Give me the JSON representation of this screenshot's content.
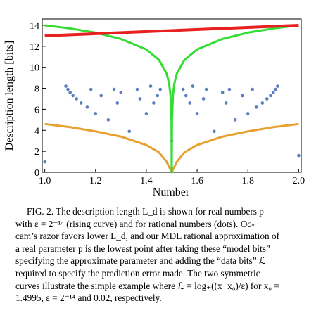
{
  "chart_data": {
    "type": "scatter_lines",
    "xlabel": "Number",
    "ylabel": "Description length [bits]",
    "xlim": [
      0.99,
      2.01
    ],
    "ylim": [
      0,
      14.6
    ],
    "xticks": [
      {
        "value": 1,
        "label": "1.0"
      },
      1.2,
      1.4,
      1.6,
      1.8,
      {
        "value": 2,
        "label": "2.0"
      }
    ],
    "yticks": [
      0,
      2,
      4,
      6,
      8,
      10,
      12,
      14
    ],
    "dots": {
      "color": "#5b7fbf",
      "x": [
        1.0,
        2.0,
        1.5,
        1.333,
        1.667,
        1.25,
        1.75,
        1.2,
        1.4,
        1.6,
        1.8,
        1.167,
        1.833,
        1.143,
        1.286,
        1.429,
        1.571,
        1.714,
        1.857,
        1.125,
        1.375,
        1.625,
        1.875,
        1.111,
        1.222,
        1.444,
        1.556,
        1.778,
        1.889,
        1.1,
        1.3,
        1.7,
        1.9,
        1.091,
        1.182,
        1.273,
        1.364,
        1.455,
        1.545,
        1.636,
        1.727,
        1.818,
        1.909,
        1.083,
        1.417,
        1.583,
        1.917
      ],
      "values": [
        1.0,
        1.6,
        3.0,
        3.9,
        3.9,
        5.0,
        5.0,
        5.6,
        5.6,
        5.6,
        5.6,
        6.2,
        6.2,
        6.6,
        6.6,
        6.6,
        6.6,
        6.6,
        6.6,
        7.0,
        7.0,
        7.0,
        7.0,
        7.3,
        7.3,
        7.3,
        7.3,
        7.3,
        7.3,
        7.6,
        7.6,
        7.6,
        7.6,
        7.9,
        7.9,
        7.9,
        7.9,
        7.9,
        7.9,
        7.9,
        7.9,
        7.9,
        7.9,
        8.2,
        8.2,
        8.2,
        8.2
      ]
    },
    "series": [
      {
        "color": "#e82020",
        "x": [
          1.0,
          2.0
        ],
        "values": [
          13.0,
          14.0
        ]
      },
      {
        "color": "#33dd33",
        "x": [
          1.0,
          1.1,
          1.2,
          1.3,
          1.4,
          1.45,
          1.48,
          1.49,
          1.495,
          1.499,
          1.5,
          1.501,
          1.505,
          1.51,
          1.52,
          1.55,
          1.6,
          1.7,
          1.8,
          1.9,
          2.0
        ],
        "values": [
          14.0,
          13.7,
          13.3,
          12.7,
          11.7,
          10.7,
          9.4,
          8.4,
          7.4,
          5.0,
          0,
          5.0,
          7.4,
          8.4,
          9.4,
          10.7,
          11.7,
          12.7,
          13.3,
          13.7,
          14.0
        ]
      },
      {
        "color": "#e8a030",
        "x": [
          1.0,
          1.1,
          1.2,
          1.3,
          1.4,
          1.45,
          1.48,
          1.5,
          1.52,
          1.55,
          1.6,
          1.7,
          1.8,
          1.9,
          2.0
        ],
        "values": [
          4.6,
          4.3,
          3.9,
          3.4,
          2.6,
          1.9,
          1.0,
          0,
          1.0,
          1.9,
          2.6,
          3.4,
          3.9,
          4.3,
          4.6
        ]
      }
    ]
  },
  "caption": [
    "FIG. 2. The description length L_d is shown for real numbers p",
    "with ε = 2⁻¹⁴ (rising curve) and for rational numbers (dots). Oc-",
    "cam’s razor favors lower L_d, and our MDL rational approximation of",
    "a real parameter p is the lowest point after taking these “model bits”",
    "specifying the approximate parameter and adding the “data bits” ℒ",
    "required to specify the prediction error made. The two symmetric",
    "curves illustrate the simple example where ℒ = log₊((x−x₀)/ε) for x₀ =",
    "1.4995, ε = 2⁻¹⁴ and 0.02, respectively."
  ]
}
